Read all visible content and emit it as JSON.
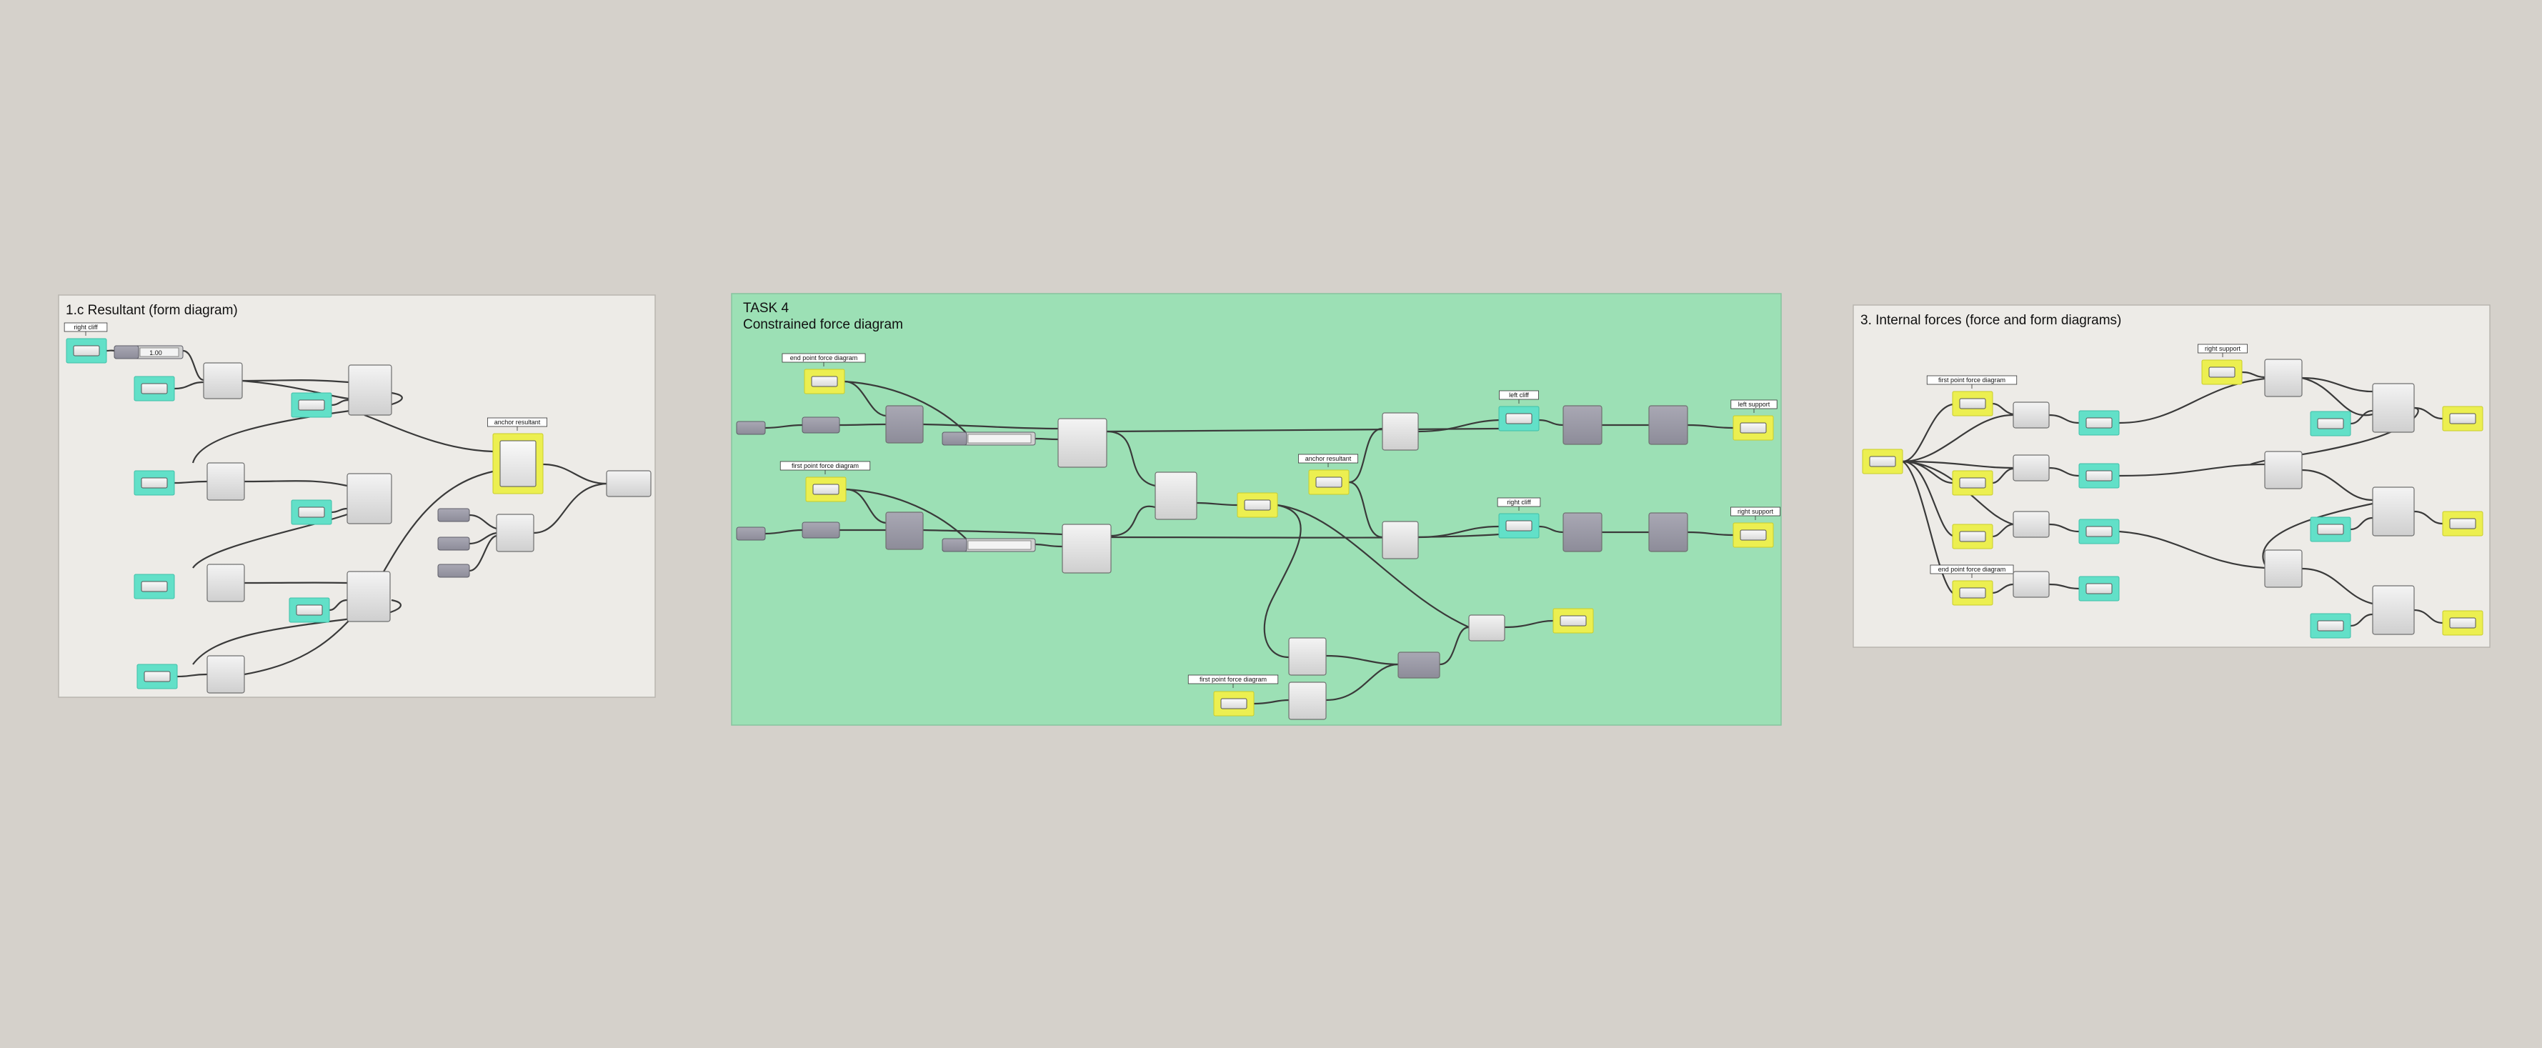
{
  "canvas": {
    "background": "#d5d1cb"
  },
  "colors": {
    "group_light": "#edebe7",
    "group_green": "#9ce0b5",
    "cyan_highlight": "#62e0c8",
    "yellow_highlight": "#ecef50",
    "component_gray": "#dcdcdc",
    "component_dark": "#9a99a6"
  },
  "groups": [
    {
      "id": "g1",
      "title": [
        "1.c Resultant (form diagram)"
      ]
    },
    {
      "id": "g2",
      "title": [
        "TASK 4",
        "Constrained force diagram"
      ]
    },
    {
      "id": "g3",
      "title": [
        "3. Internal forces (force and form diagrams)"
      ]
    }
  ],
  "labels": {
    "right_cliff": "right cliff",
    "anchor_resultant": "anchor resultant",
    "end_point_force_diagram": "end point force diagram",
    "first_point_force_diagram": "first point force diagram",
    "left_cliff": "left cliff",
    "left_support": "left support",
    "right_support": "right support",
    "slider_value": "1.00"
  }
}
